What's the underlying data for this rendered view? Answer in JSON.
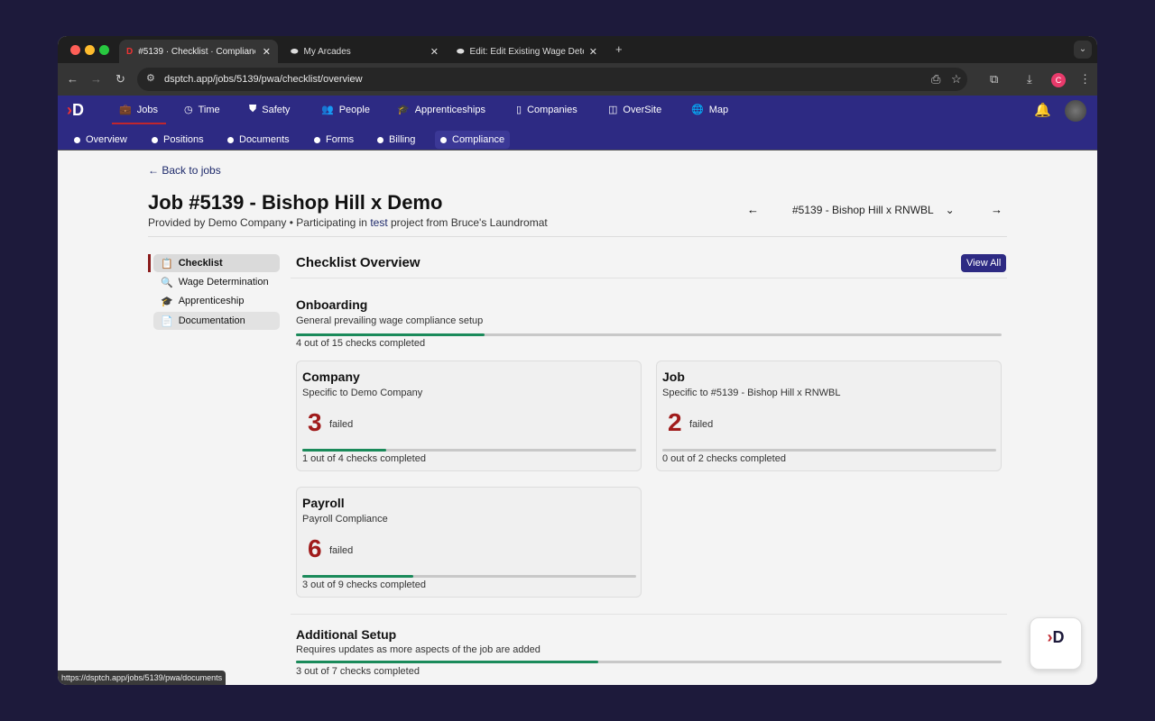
{
  "browser": {
    "tabs": [
      {
        "title": "#5139 · Checklist · Complianc",
        "active": true
      },
      {
        "title": "My Arcades",
        "active": false
      },
      {
        "title": "Edit: Edit Existing Wage Deter",
        "active": false
      }
    ],
    "url": "dsptch.app/jobs/5139/pwa/checklist/overview",
    "profile_initial": "C",
    "status_url": "https://dsptch.app/jobs/5139/pwa/documents"
  },
  "nav": {
    "items": [
      {
        "label": "Jobs",
        "icon": "briefcase-icon",
        "active": true
      },
      {
        "label": "Time",
        "icon": "clock-icon"
      },
      {
        "label": "Safety",
        "icon": "shield-icon"
      },
      {
        "label": "People",
        "icon": "people-icon"
      },
      {
        "label": "Apprenticeships",
        "icon": "graduation-cap-icon"
      },
      {
        "label": "Companies",
        "icon": "building-icon"
      },
      {
        "label": "OverSite",
        "icon": "map-book-icon"
      },
      {
        "label": "Map",
        "icon": "globe-icon"
      }
    ]
  },
  "subnav": {
    "items": [
      {
        "label": "Overview"
      },
      {
        "label": "Positions"
      },
      {
        "label": "Documents"
      },
      {
        "label": "Forms"
      },
      {
        "label": "Billing"
      },
      {
        "label": "Compliance",
        "active": true
      }
    ]
  },
  "page": {
    "back": "Back to jobs",
    "title": "Job #5139 - Bishop Hill x Demo",
    "subtitle_prefix": "Provided by Demo Company • Participating in ",
    "subtitle_link": "test",
    "subtitle_suffix": " project from Bruce's Laundromat",
    "job_selector": "#5139 - Bishop Hill x RNWBL"
  },
  "sidebar": {
    "items": [
      {
        "label": "Checklist",
        "active": true
      },
      {
        "label": "Wage Determination"
      },
      {
        "label": "Apprenticeship"
      },
      {
        "label": "Documentation"
      }
    ]
  },
  "overview": {
    "title": "Checklist Overview",
    "view_all": "View All"
  },
  "sections": [
    {
      "title": "Onboarding",
      "desc": "General prevailing wage compliance setup",
      "progress": "4 out of 15 checks completed",
      "fraction": 0.267,
      "cards": [
        {
          "title": "Company",
          "desc": "Specific to Demo Company",
          "failed": "3",
          "failed_label": "failed",
          "progress": "1 out of 4 checks completed",
          "fraction": 0.25
        },
        {
          "title": "Job",
          "desc": "Specific to #5139 - Bishop Hill x RNWBL",
          "failed": "2",
          "failed_label": "failed",
          "progress": "0 out of 2 checks completed",
          "fraction": 0
        },
        {
          "title": "Payroll",
          "desc": "Payroll Compliance",
          "failed": "6",
          "failed_label": "failed",
          "progress": "3 out of 9 checks completed",
          "fraction": 0.333
        }
      ]
    },
    {
      "title": "Additional Setup",
      "desc": "Requires updates as more aspects of the job are added",
      "progress": "3 out of 7 checks completed",
      "fraction": 0.429
    }
  ],
  "colors": {
    "nav": "#2d2a83",
    "accent": "#1a8a5a",
    "failed": "#a01b1b"
  }
}
